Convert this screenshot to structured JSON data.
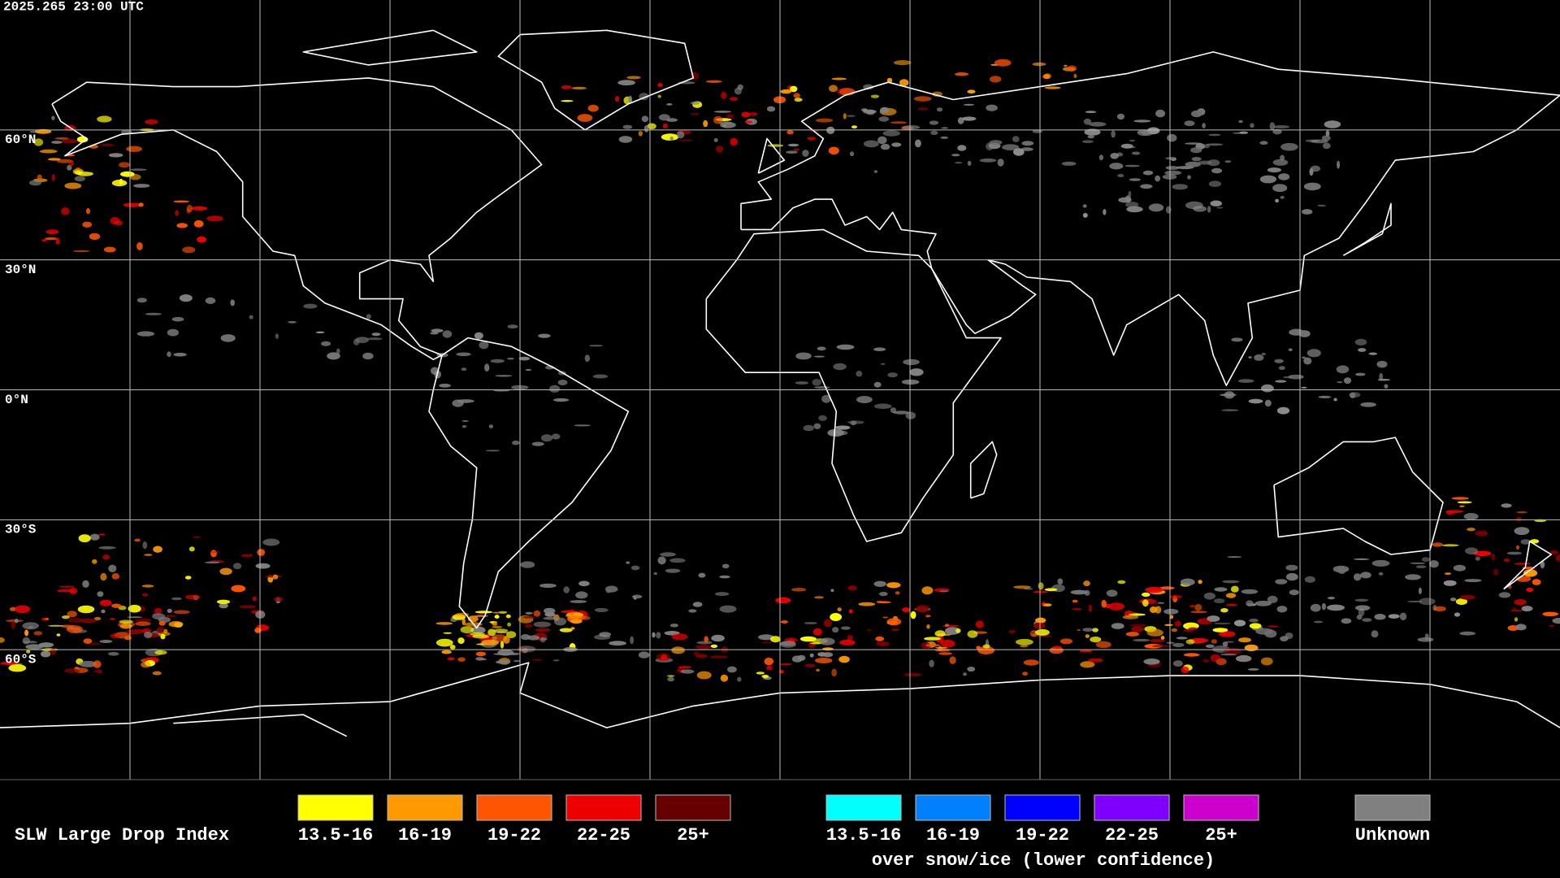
{
  "timestamp": "2025.265 23:00 UTC",
  "lat_labels": [
    "60°N",
    "30°N",
    "0°N",
    "30°S",
    "60°S"
  ],
  "legend": {
    "title": "SLW Large Drop Index",
    "items": [
      {
        "label": "13.5-16",
        "color": "#ffff00"
      },
      {
        "label": "16-19",
        "color": "#ff9900"
      },
      {
        "label": "19-22",
        "color": "#ff5500"
      },
      {
        "label": "22-25",
        "color": "#ee0000"
      },
      {
        "label": "25+",
        "color": "#660000"
      }
    ],
    "snow_ice_items": [
      {
        "label": "13.5-16",
        "color": "#00ffff"
      },
      {
        "label": "16-19",
        "color": "#0080ff"
      },
      {
        "label": "19-22",
        "color": "#0000ff"
      },
      {
        "label": "22-25",
        "color": "#7f00ff"
      },
      {
        "label": "25+",
        "color": "#cc00cc"
      }
    ],
    "snow_ice_note": "over snow/ice (lower confidence)",
    "unknown": {
      "label": "Unknown",
      "color": "#808080"
    }
  }
}
